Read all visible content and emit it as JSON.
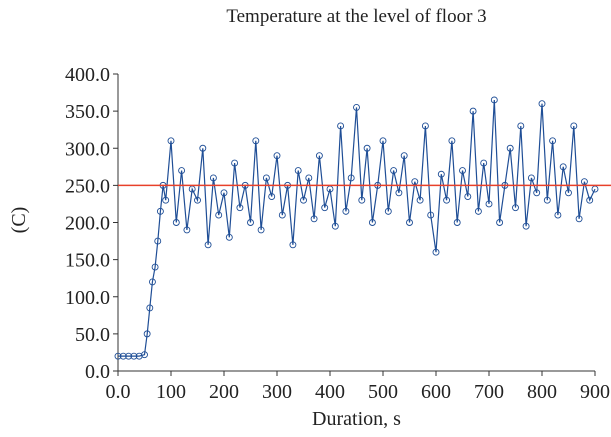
{
  "chart_data": {
    "type": "line",
    "title": "Temperature at the level of floor 3",
    "xlabel": "Duration, s",
    "ylabel": "(C)",
    "xlim": [
      0,
      900
    ],
    "ylim": [
      0,
      400
    ],
    "xticks": [
      "0.0",
      "100",
      "200",
      "300",
      "400",
      "500",
      "600",
      "700",
      "800",
      "900"
    ],
    "yticks": [
      "0.0",
      "50.0",
      "100.0",
      "150.0",
      "200.0",
      "250.0",
      "300.0",
      "350.0",
      "400.0"
    ],
    "grid": false,
    "reference_line": {
      "y": 250,
      "color": "#e8402a"
    },
    "series_color": "#1f4e96",
    "series": [
      {
        "markers": "open-circle",
        "x": [
          0,
          10,
          20,
          30,
          40,
          50,
          55,
          60,
          65,
          70,
          75,
          80,
          85,
          90,
          100,
          110,
          120,
          130,
          140,
          150,
          160,
          170,
          180,
          190,
          200,
          210,
          220,
          230,
          240,
          250,
          260,
          270,
          280,
          290,
          300,
          310,
          320,
          330,
          340,
          350,
          360,
          370,
          380,
          390,
          400,
          410,
          420,
          430,
          440,
          450,
          460,
          470,
          480,
          490,
          500,
          510,
          520,
          530,
          540,
          550,
          560,
          570,
          580,
          590,
          600,
          610,
          620,
          630,
          640,
          650,
          660,
          670,
          680,
          690,
          700,
          710,
          720,
          730,
          740,
          750,
          760,
          770,
          780,
          790,
          800,
          810,
          820,
          830,
          840,
          850,
          860,
          870,
          880,
          890,
          900
        ],
        "y": [
          20,
          20,
          20,
          20,
          20,
          22,
          50,
          85,
          120,
          140,
          175,
          215,
          250,
          230,
          310,
          200,
          270,
          190,
          245,
          230,
          300,
          170,
          260,
          210,
          240,
          180,
          280,
          220,
          250,
          200,
          310,
          190,
          260,
          235,
          290,
          210,
          250,
          170,
          270,
          230,
          260,
          205,
          290,
          220,
          245,
          195,
          330,
          215,
          260,
          355,
          230,
          300,
          200,
          250,
          310,
          215,
          270,
          240,
          290,
          200,
          255,
          230,
          330,
          210,
          160,
          265,
          230,
          310,
          200,
          270,
          235,
          350,
          215,
          280,
          225,
          365,
          200,
          250,
          300,
          220,
          330,
          195,
          260,
          240,
          360,
          230,
          310,
          210,
          275,
          240,
          330,
          205,
          255,
          230,
          245
        ]
      }
    ]
  }
}
